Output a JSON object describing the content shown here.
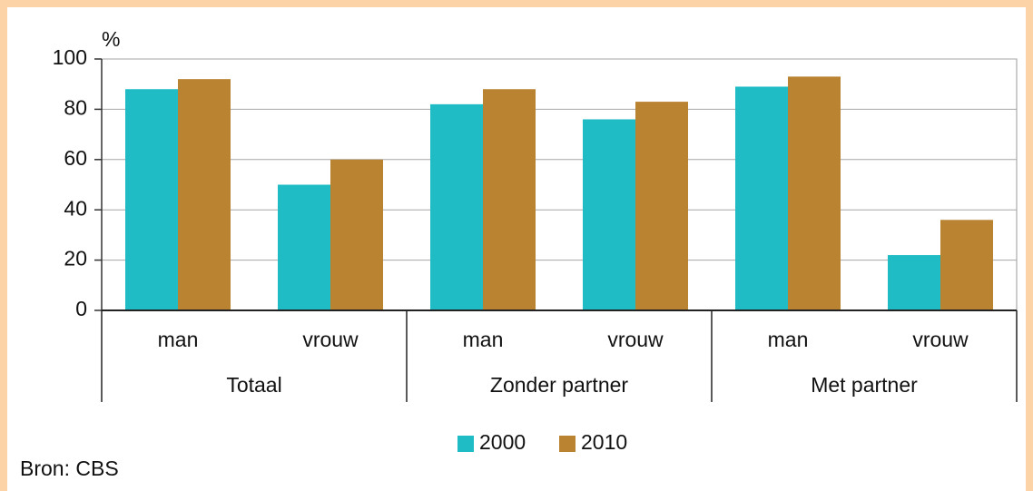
{
  "chart_data": {
    "type": "bar",
    "y_label": "%",
    "groups": [
      {
        "name": "Totaal",
        "categories": [
          "man",
          "vrouw"
        ]
      },
      {
        "name": "Zonder partner",
        "categories": [
          "man",
          "vrouw"
        ]
      },
      {
        "name": "Met partner",
        "categories": [
          "man",
          "vrouw"
        ]
      }
    ],
    "series": [
      {
        "name": "2000",
        "color": "#1fbcc6",
        "values": [
          88,
          50,
          82,
          76,
          89,
          22
        ]
      },
      {
        "name": "2010",
        "color": "#b98332",
        "values": [
          92,
          60,
          88,
          83,
          93,
          36
        ]
      }
    ],
    "ylim": [
      0,
      100
    ],
    "yticks": [
      0,
      20,
      40,
      60,
      80,
      100
    ],
    "grid": true,
    "legend": "bottom",
    "source": "Bron: CBS"
  }
}
